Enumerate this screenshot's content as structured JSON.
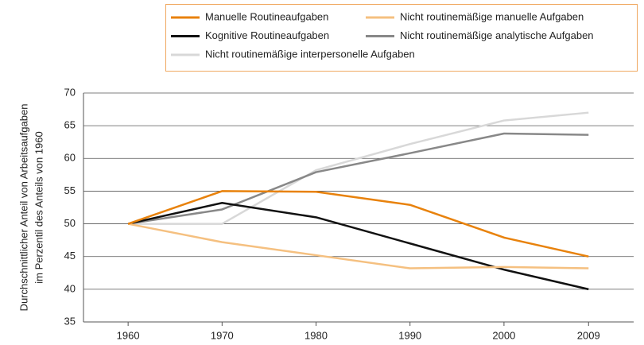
{
  "chart_data": {
    "type": "line",
    "y_label": [
      "Durchschnittlicher Anteil von Arbeitsaufgaben",
      "im Perzentil des Anteils von 1960"
    ],
    "x": [
      1960,
      1970,
      1980,
      1990,
      2000,
      2009
    ],
    "xlim": [
      1955.25,
      2013.8
    ],
    "xticks": [
      1960,
      1970,
      1980,
      1990,
      2000,
      2009
    ],
    "ylim": [
      35,
      70
    ],
    "yticks": [
      35,
      40,
      45,
      50,
      55,
      60,
      65,
      70
    ],
    "grid": true,
    "legend": "top-right",
    "series": [
      {
        "name": "Manuelle Routineaufgaben",
        "color": "#e8820c",
        "values": [
          50,
          55,
          54.9,
          52.9,
          47.9,
          45
        ]
      },
      {
        "name": "Nicht routinemäßige manuelle Aufgaben",
        "color": "#f5c080",
        "values": [
          50,
          47.2,
          45.2,
          43.2,
          43.4,
          43.2
        ]
      },
      {
        "name": "Kognitive Routineaufgaben",
        "color": "#111111",
        "values": [
          50,
          53.2,
          51,
          47,
          43,
          40
        ]
      },
      {
        "name": "Nicht routinemäßige analytische Aufgaben",
        "color": "#888888",
        "values": [
          50,
          52.2,
          57.9,
          60.8,
          63.8,
          63.6
        ]
      },
      {
        "name": "Nicht routinemäßige interpersonelle Aufgaben",
        "color": "#d8d8d8",
        "values": [
          50,
          50,
          58.2,
          62.2,
          65.8,
          67
        ]
      }
    ]
  }
}
